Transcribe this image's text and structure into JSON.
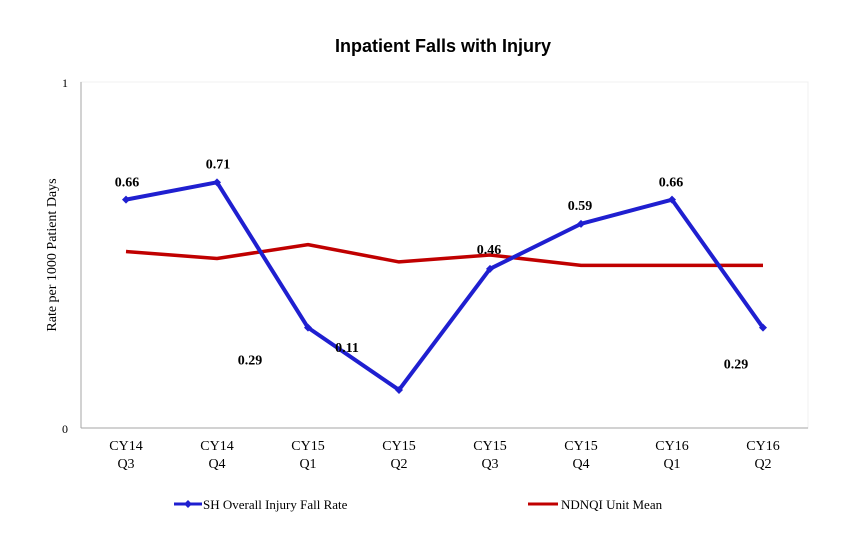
{
  "chart_data": {
    "type": "line",
    "title": "Inpatient Falls with Injury",
    "xlabel": "",
    "ylabel": "Rate per 1000 Patient Days",
    "ylim": [
      0,
      1
    ],
    "yticks": [
      "0",
      "1"
    ],
    "grid": false,
    "legend": "bottom",
    "categories": [
      [
        "CY14",
        "Q3"
      ],
      [
        "CY14",
        "Q4"
      ],
      [
        "CY15",
        "Q1"
      ],
      [
        "CY15",
        "Q2"
      ],
      [
        "CY15",
        "Q3"
      ],
      [
        "CY15",
        "Q4"
      ],
      [
        "CY16",
        "Q1"
      ],
      [
        "CY16",
        "Q2"
      ]
    ],
    "series": [
      {
        "name": "SH Overall Injury Fall Rate",
        "color": "#1f1fd0",
        "marker": "diamond",
        "values": [
          0.66,
          0.71,
          0.29,
          0.11,
          0.46,
          0.59,
          0.66,
          0.29
        ],
        "data_labels": [
          "0.66",
          "0.71",
          "0.29",
          "0.11",
          "0.46",
          "0.59",
          "0.66",
          "0.29"
        ]
      },
      {
        "name": "NDNQI Unit Mean",
        "color": "#c00000",
        "values": [
          0.51,
          0.49,
          0.53,
          0.48,
          0.5,
          0.47,
          0.47,
          0.47
        ]
      }
    ]
  }
}
